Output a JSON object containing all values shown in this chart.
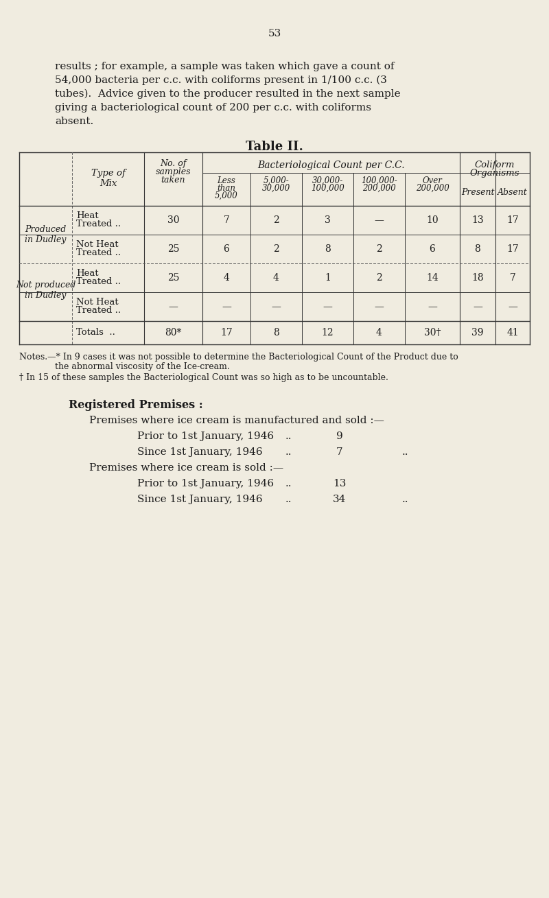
{
  "bg_color": "#f0ece0",
  "page_number": "53",
  "intro_lines": [
    "results ; for example, a sample was taken which gave a count of",
    "54,000 bacteria per c.c. with coliforms present in 1/100 c.c. (3",
    "tubes).  Advice given to the producer resulted in the next sample",
    "giving a bacteriological count of 200 per c.c. with coliforms",
    "absent."
  ],
  "table_title": "Table II.",
  "notes_lines": [
    "Notes.—* In 9 cases it was not possible to determine the Bacteriological Count of the Product due to",
    "             the abnormal viscosity of the Ice-cream.",
    "† In 15 of these samples the Bacteriological Count was so high as to be uncountable."
  ],
  "reg_title": "Registered Premises :",
  "reg_lines": [
    {
      "level": 0,
      "text": "Premises where ice cream is manufactured and sold :—",
      "dots": "",
      "value": ""
    },
    {
      "level": 1,
      "text": "Prior to 1st January, 1946",
      "dots": "..",
      "value": "9"
    },
    {
      "level": 1,
      "text": "Since 1st January, 1946",
      "dots": "..",
      "value": "7"
    },
    {
      "level": 0,
      "text": "Premises where ice cream is sold :—",
      "dots": "",
      "value": ""
    },
    {
      "level": 1,
      "text": "Prior to 1st January, 1946",
      "dots": "..",
      "value": "13"
    },
    {
      "level": 1,
      "text": "Since 1st January, 1946",
      "dots": "..",
      "value": "34"
    }
  ],
  "table_data": {
    "group1_label": "Produced\nin Dudley",
    "group2_label": "Not produced\nin Dudley",
    "rows": [
      [
        "Heat\nTreated ..",
        "30",
        "7",
        "2",
        "3",
        "—",
        "10",
        "13",
        "17"
      ],
      [
        "Not Heat\nTreated ..",
        "25",
        "6",
        "2",
        "8",
        "2",
        "6",
        "8",
        "17"
      ],
      [
        "Heat\nTreated ..",
        "25",
        "4",
        "4",
        "1",
        "2",
        "14",
        "18",
        "7"
      ],
      [
        "Not Heat\nTreated ..",
        "—",
        "—",
        "—",
        "—",
        "—",
        "—",
        "—",
        "—"
      ]
    ],
    "totals": [
      "Totals  ..",
      "80*",
      "17",
      "8",
      "12",
      "4",
      "30†",
      "39",
      "41"
    ]
  }
}
